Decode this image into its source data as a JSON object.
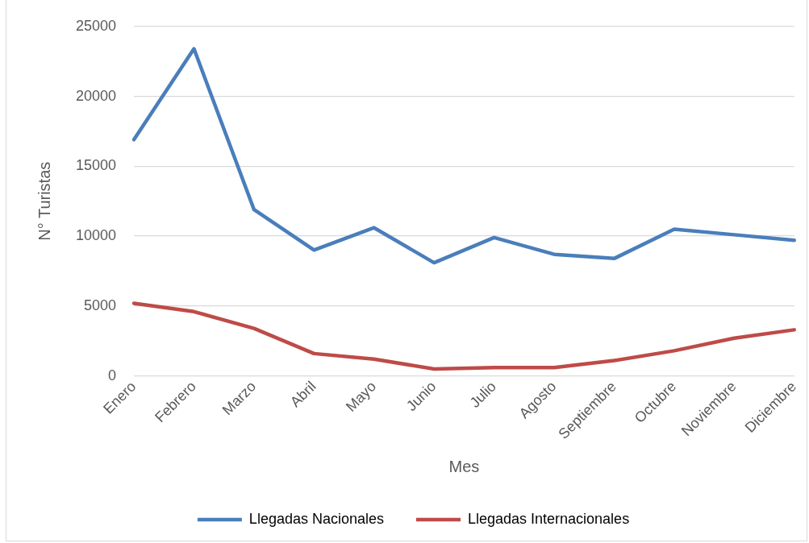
{
  "chart_data": {
    "type": "line",
    "xlabel": "Mes",
    "ylabel": "N° Turistas",
    "categories": [
      "Enero",
      "Febrero",
      "Marzo",
      "Abril",
      "Mayo",
      "Junio",
      "Julio",
      "Agosto",
      "Septiembre",
      "Octubre",
      "Noviembre",
      "Diciembre"
    ],
    "series": [
      {
        "name": "Llegadas Nacionales",
        "color": "#4a7ebb",
        "values": [
          16900,
          23400,
          11900,
          9000,
          10600,
          8100,
          9900,
          8700,
          8400,
          10500,
          10100,
          9700
        ]
      },
      {
        "name": "Llegadas Internacionales",
        "color": "#be4b48",
        "values": [
          5200,
          4600,
          3400,
          1600,
          1200,
          500,
          600,
          600,
          1100,
          1800,
          2700,
          3300
        ]
      }
    ],
    "ylim": [
      0,
      25000
    ],
    "yticks": [
      0,
      5000,
      10000,
      15000,
      20000,
      25000
    ],
    "grid": "y",
    "legend": "bottom",
    "marker": "none",
    "line_style": "solid"
  }
}
